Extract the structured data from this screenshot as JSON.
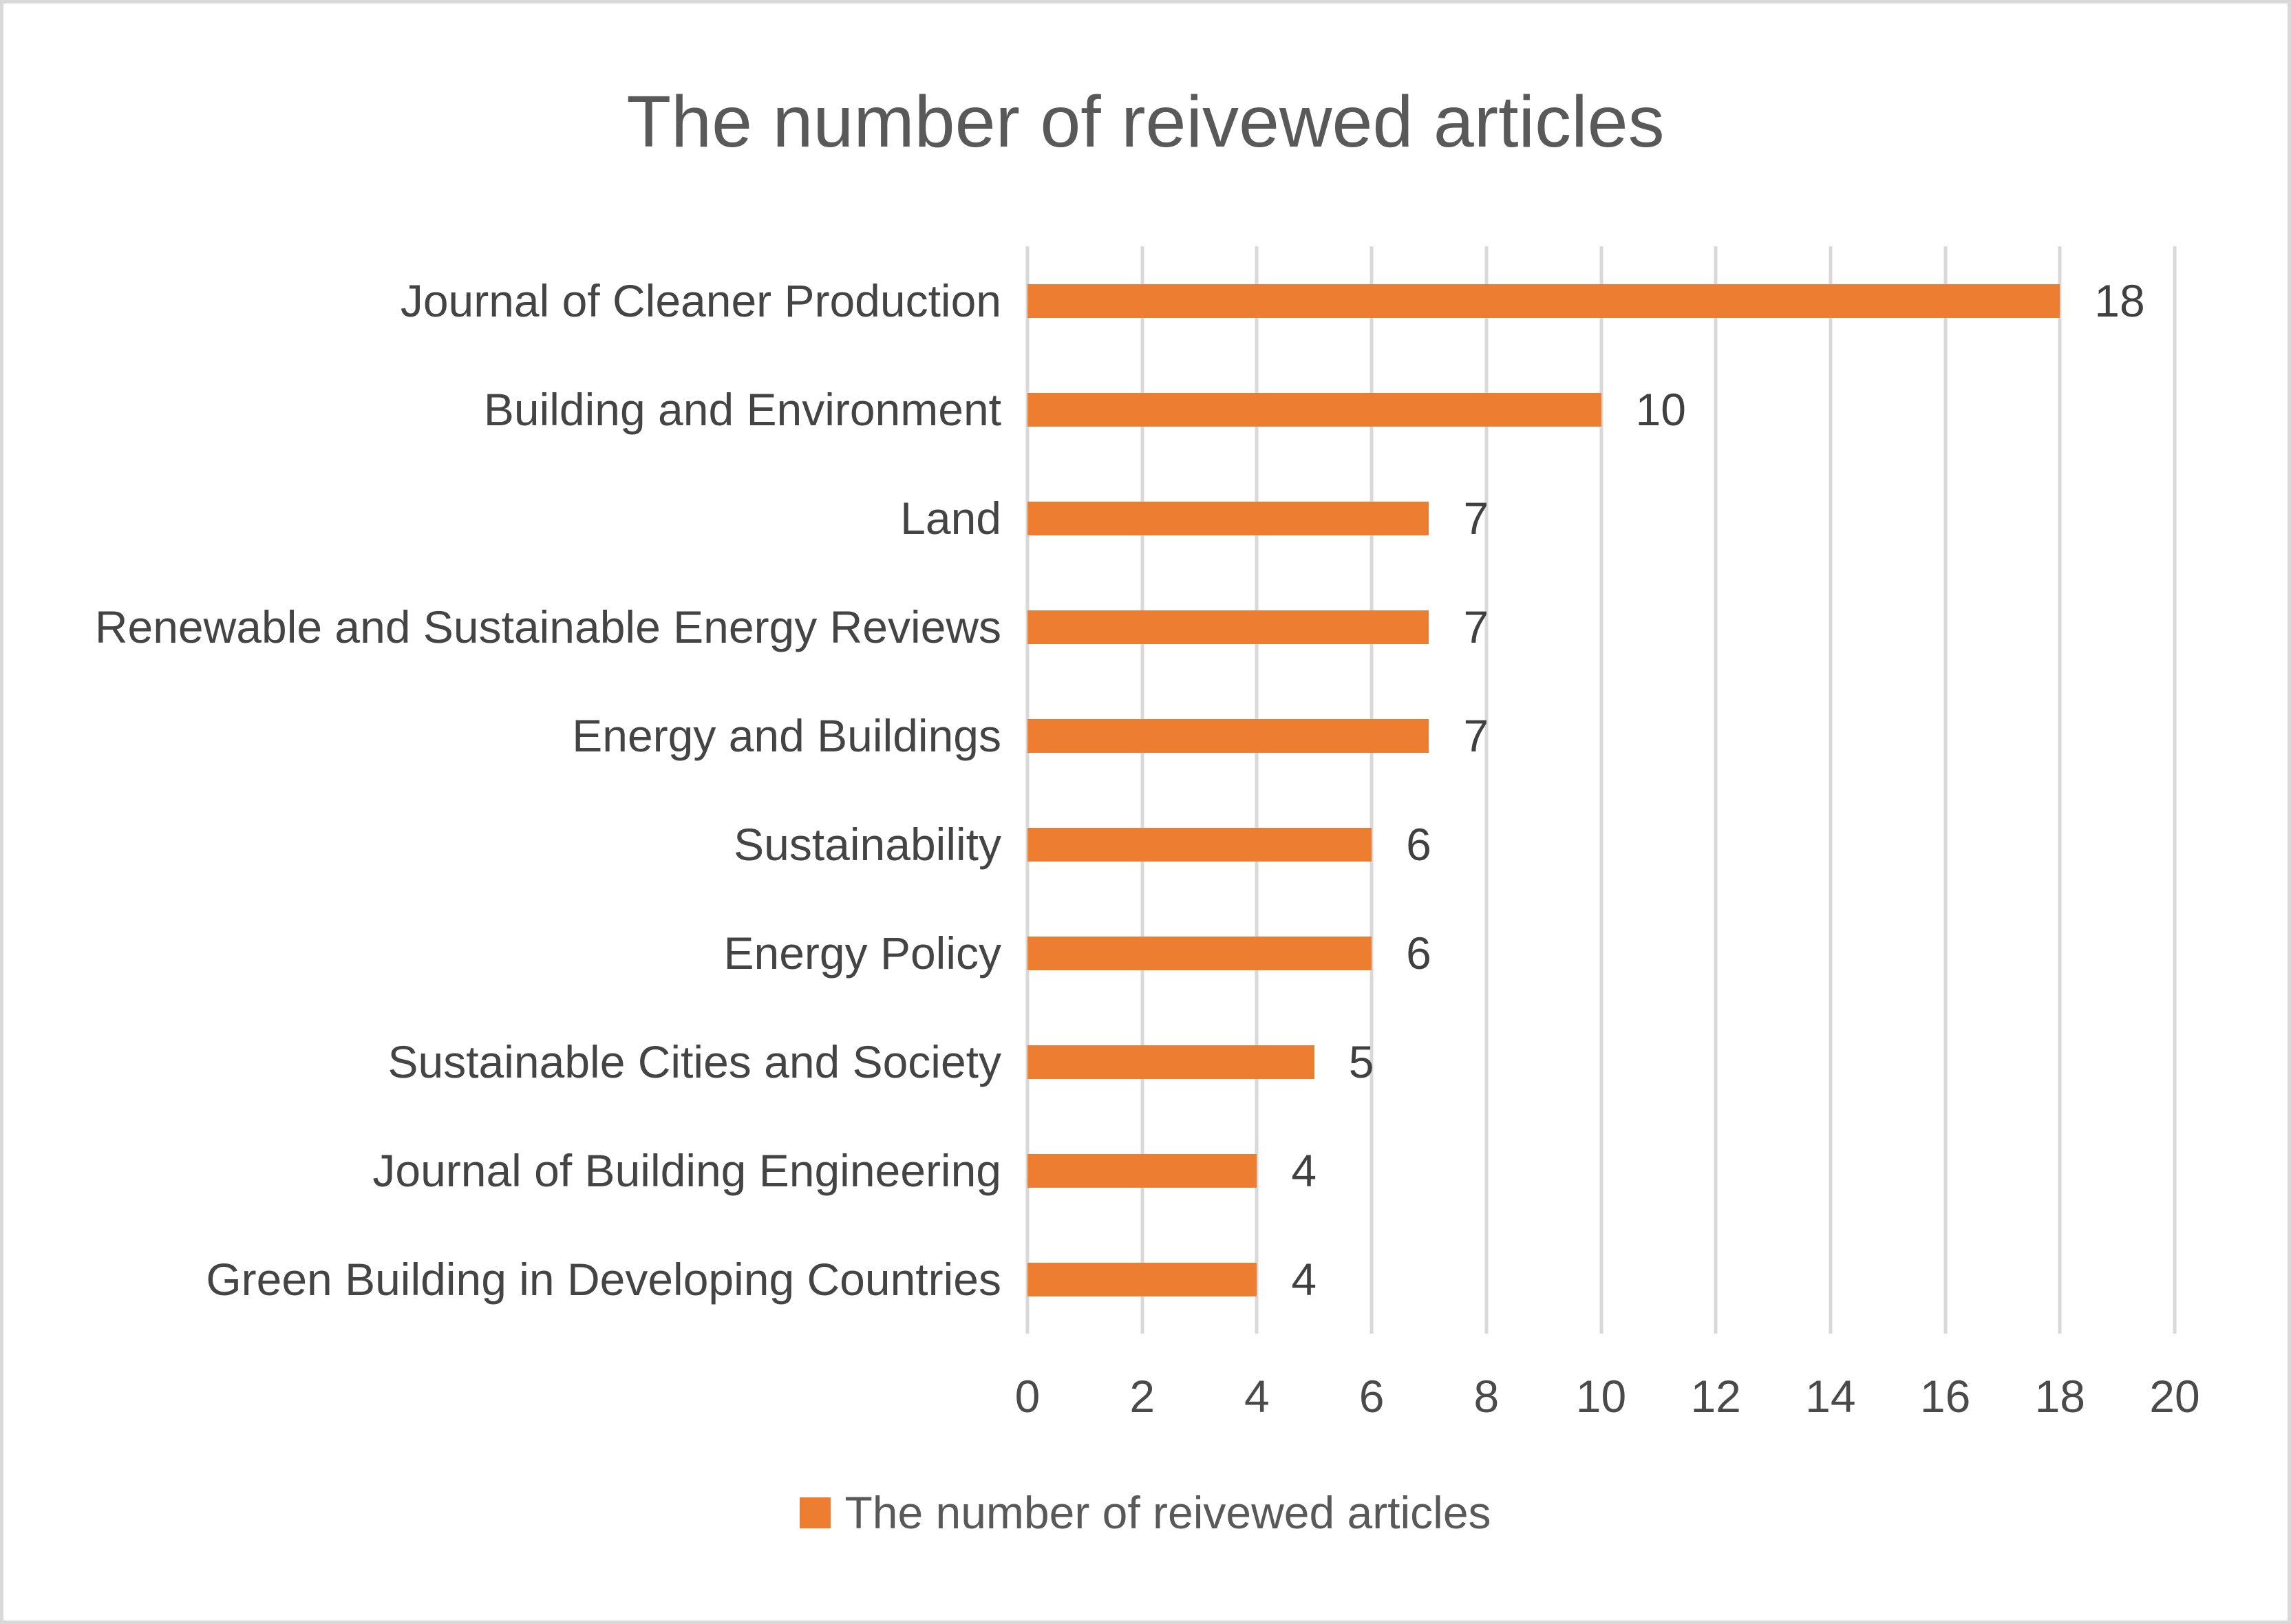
{
  "title": "The number of reivewed articles",
  "legend": {
    "label": "The number of reivewed articles",
    "swatch_color": "#ED7D31"
  },
  "colors": {
    "bar": "#ED7D31",
    "gridline": "#D9D9D9",
    "border": "#D9D9D9",
    "title_text": "#595959",
    "category_text": "#444444",
    "value_text": "#404040",
    "tick_text": "#4a4a4a"
  },
  "chart_data": {
    "type": "bar",
    "orientation": "horizontal",
    "title": "The number of reivewed articles",
    "series_name": "The number of reivewed articles",
    "categories": [
      "Journal of Cleaner Production",
      "Building and Environment",
      "Land",
      "Renewable and Sustainable Energy Reviews",
      "Energy and Buildings",
      "Sustainability",
      "Energy Policy",
      "Sustainable Cities and Society",
      "Journal of Building Engineering",
      "Green Building in Developing Countries"
    ],
    "values": [
      18,
      10,
      7,
      7,
      7,
      6,
      6,
      5,
      4,
      4
    ],
    "xlim": [
      0,
      20
    ],
    "x_ticks": [
      0,
      2,
      4,
      6,
      8,
      10,
      12,
      14,
      16,
      18,
      20
    ],
    "grid": true,
    "data_labels": true,
    "legend_position": "bottom"
  }
}
